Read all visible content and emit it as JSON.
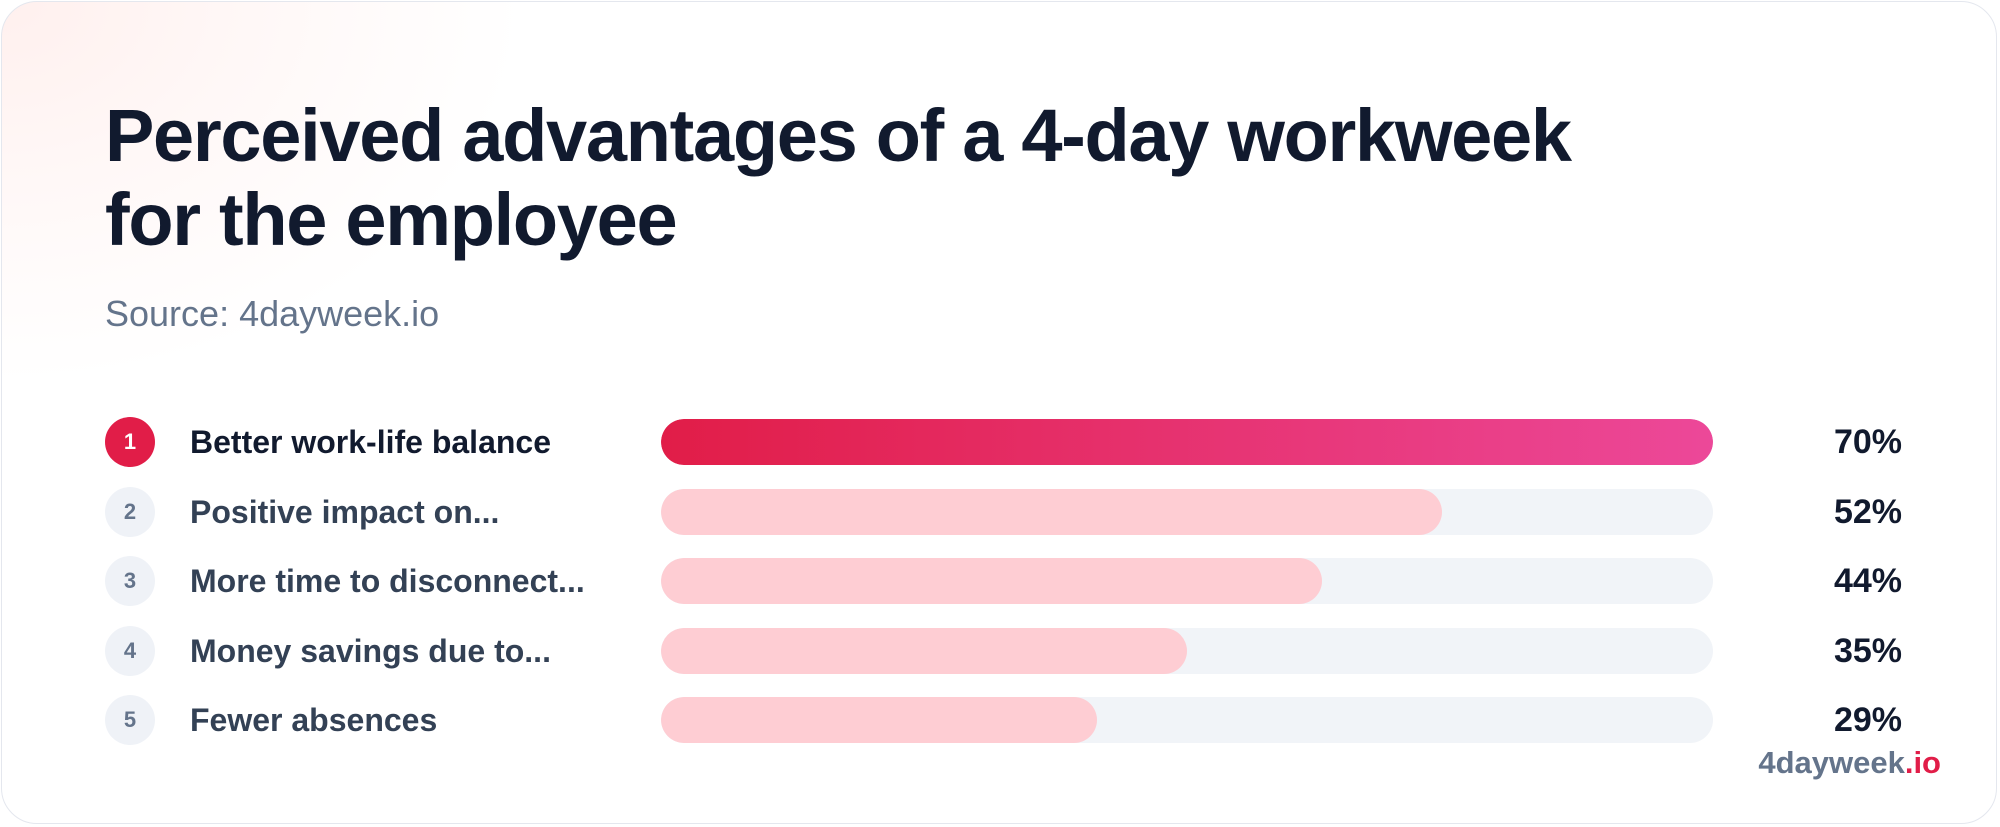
{
  "title_line1": "Perceived advantages of a 4-day workweek",
  "title_line2": "for the employee",
  "source": "Source: 4dayweek.io",
  "brand": {
    "name": "4dayweek",
    "tld": ".io"
  },
  "colors": {
    "accent": "#e11d48",
    "accent_end": "#ec4899",
    "bar_light": "#fecdd3",
    "track": "#f1f4f8",
    "title": "#111a2e",
    "muted": "#64748b"
  },
  "chart_data": {
    "type": "bar",
    "orientation": "horizontal",
    "categories": [
      "Better work-life balance",
      "Positive impact on...",
      "More time to disconnect...",
      "Money savings due to...",
      "Fewer absences"
    ],
    "ranks": [
      "1",
      "2",
      "3",
      "4",
      "5"
    ],
    "values": [
      70,
      52,
      44,
      35,
      29
    ],
    "value_labels": [
      "70%",
      "52%",
      "44%",
      "35%",
      "29%"
    ],
    "xlim": [
      0,
      70
    ],
    "unit": "%",
    "grid": false
  }
}
